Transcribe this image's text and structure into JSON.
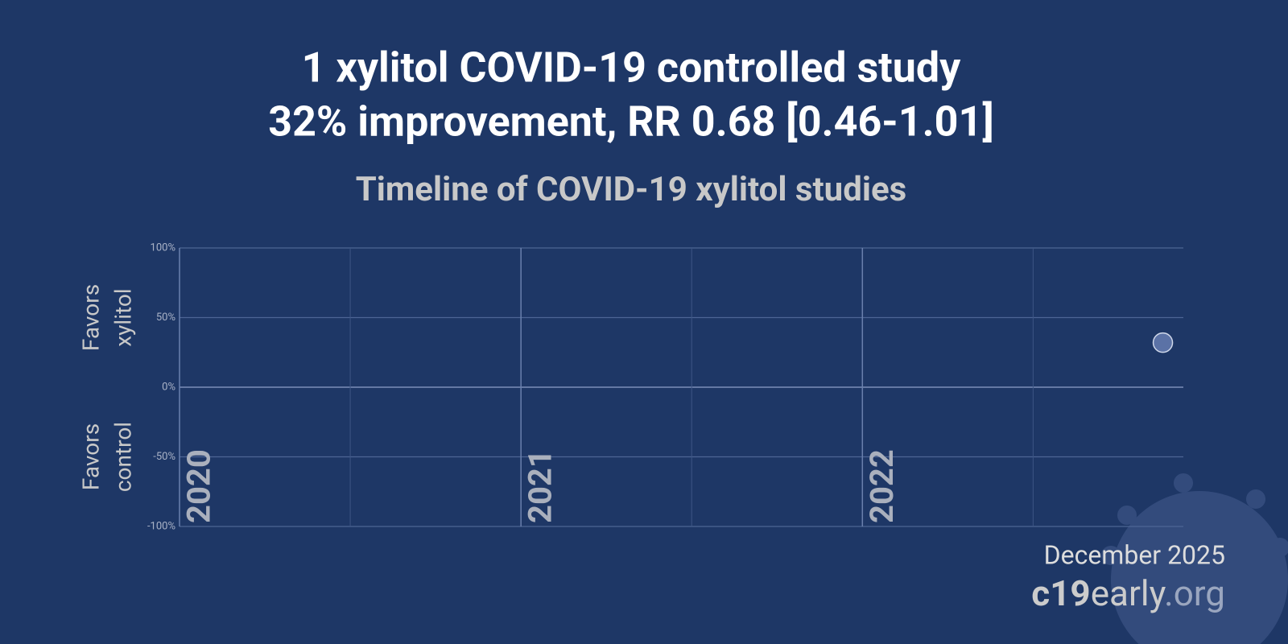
{
  "chart_data": {
    "type": "scatter",
    "title": [
      "1 xylitol COVID-19 controlled study",
      "32% improvement, RR 0.68 [0.46-1.01]"
    ],
    "subtitle": "Timeline of COVID-19 xylitol studies",
    "y_annotations": [
      [
        "Favors",
        "xylitol"
      ],
      [
        "Favors",
        "control"
      ]
    ],
    "x": [
      2022.88
    ],
    "values": [
      32
    ],
    "color": "#5b72a6",
    "xlim": [
      2020,
      2022.94
    ],
    "xticks": [
      2020,
      2021,
      2022
    ],
    "x_minor_grid": [
      2020.5,
      2021.5,
      2022.5
    ],
    "ylim": [
      -100,
      100
    ],
    "yticks": [
      {
        "value": 100,
        "label": "100%"
      },
      {
        "value": 50,
        "label": "50%"
      },
      {
        "value": 0,
        "label": "0%"
      },
      {
        "value": -50,
        "label": "-50%"
      },
      {
        "value": -100,
        "label": "-100%"
      }
    ],
    "grid": true,
    "footer": {
      "date": "December 2025",
      "site": [
        "c19",
        "early",
        ".org"
      ]
    }
  }
}
